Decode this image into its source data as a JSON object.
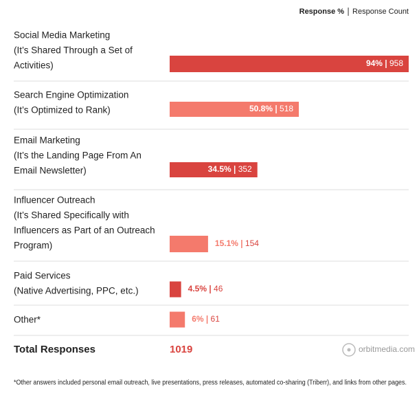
{
  "chart_data": {
    "type": "bar",
    "legend": [
      "Response %",
      "Response Count"
    ],
    "categories": [
      [
        "Social Media Marketing",
        "(It’s Shared Through a Set of",
        "Activities)"
      ],
      [
        "Search Engine Optimization",
        "(It’s Optimized to Rank)"
      ],
      [
        "Email Marketing",
        "(It’s the Landing Page From An",
        "Email Newsletter)"
      ],
      [
        "Influencer Outreach",
        "(It’s Shared Specifically with",
        "Influencers as Part of an Outreach",
        "Program)"
      ],
      [
        "Paid Services",
        "(Native Advertising, PPC, etc.)"
      ],
      [
        "Other*"
      ]
    ],
    "values": [
      94,
      50.8,
      34.5,
      15.1,
      4.5,
      6
    ],
    "value_labels": [
      "94%",
      "50.8%",
      "34.5%",
      "15.1%",
      "4.5%",
      "6%"
    ],
    "counts": [
      958,
      518,
      352,
      154,
      46,
      61
    ],
    "colors": [
      "#d9443f",
      "#f47a6c",
      "#d9443f",
      "#f47a6c",
      "#d9443f",
      "#f47a6c"
    ],
    "total_label": "Total Responses",
    "total": 1019,
    "watermark": "orbitmedia.com",
    "footnote": "*Other answers included personal email outreach, live presentations, press releases, automated co-sharing (Triberr), and links from other pages."
  }
}
